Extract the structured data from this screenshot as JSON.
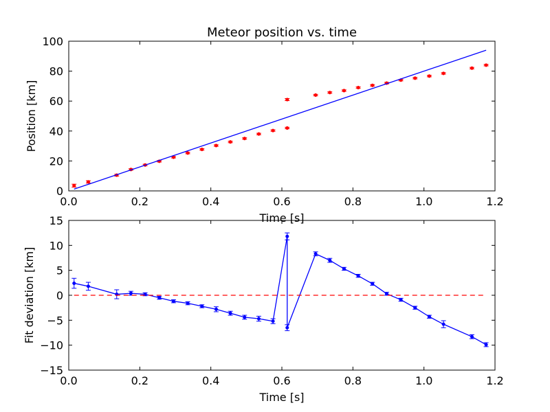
{
  "chart_data": [
    {
      "type": "scatter",
      "title": "Meteor position vs. time",
      "xlabel": "Time [s]",
      "ylabel": "Position [km]",
      "xlim": [
        0,
        1.2
      ],
      "ylim": [
        0,
        100
      ],
      "xticks": [
        "0.0",
        "0.2",
        "0.4",
        "0.6",
        "0.8",
        "1.0",
        "1.2"
      ],
      "yticks": [
        "0",
        "20",
        "40",
        "60",
        "80",
        "100"
      ],
      "grid": false,
      "series": [
        {
          "kind": "errorbar-points",
          "color": "#ff0000",
          "x": [
            0.015,
            0.055,
            0.135,
            0.175,
            0.215,
            0.255,
            0.295,
            0.335,
            0.375,
            0.415,
            0.455,
            0.495,
            0.535,
            0.575,
            0.615,
            0.615,
            0.695,
            0.735,
            0.775,
            0.815,
            0.855,
            0.895,
            0.935,
            0.975,
            1.015,
            1.055,
            1.135,
            1.175
          ],
          "y": [
            3.5,
            6.0,
            10.5,
            14.3,
            17.3,
            19.8,
            22.5,
            25.3,
            27.7,
            30.3,
            32.7,
            35.0,
            38.0,
            40.3,
            42.0,
            61.0,
            64.0,
            65.7,
            67.0,
            69.0,
            70.5,
            72.0,
            74.0,
            75.3,
            76.7,
            78.5,
            82.0,
            84.0
          ],
          "yerr": [
            1.0,
            0.8,
            0.6,
            0.5,
            0.5,
            0.5,
            0.5,
            0.5,
            0.5,
            0.5,
            0.5,
            0.5,
            0.5,
            0.5,
            0.5,
            0.7,
            0.5,
            0.5,
            0.5,
            0.5,
            0.5,
            0.5,
            0.5,
            0.5,
            0.5,
            0.5,
            0.5,
            0.5
          ]
        },
        {
          "kind": "fit-line",
          "color": "#0000ff",
          "x": [
            0.015,
            1.175
          ],
          "y": [
            1.2,
            94.0
          ]
        }
      ]
    },
    {
      "type": "line",
      "xlabel": "Time [s]",
      "ylabel": "Fit deviation [km]",
      "xlim": [
        0,
        1.2
      ],
      "ylim": [
        -15,
        15
      ],
      "xticks": [
        "0.0",
        "0.2",
        "0.4",
        "0.6",
        "0.8",
        "1.0",
        "1.2"
      ],
      "yticks": [
        "−15",
        "−10",
        "−5",
        "0",
        "5",
        "10",
        "15"
      ],
      "grid": false,
      "series": [
        {
          "kind": "errorbar-line",
          "color": "#0000ff",
          "x": [
            0.015,
            0.055,
            0.135,
            0.175,
            0.215,
            0.255,
            0.295,
            0.335,
            0.375,
            0.415,
            0.455,
            0.495,
            0.535,
            0.575,
            0.615,
            0.615,
            0.695,
            0.735,
            0.775,
            0.815,
            0.855,
            0.895,
            0.935,
            0.975,
            1.015,
            1.055,
            1.135,
            1.175
          ],
          "y": [
            2.4,
            1.8,
            0.2,
            0.4,
            0.2,
            -0.5,
            -1.2,
            -1.6,
            -2.2,
            -2.8,
            -3.6,
            -4.4,
            -4.7,
            -5.2,
            11.8,
            -6.5,
            8.3,
            7.0,
            5.3,
            3.9,
            2.3,
            0.3,
            -0.9,
            -2.5,
            -4.3,
            -5.8,
            -8.3,
            -9.9
          ],
          "yerr": [
            1.0,
            0.8,
            0.9,
            0.4,
            0.3,
            0.3,
            0.3,
            0.3,
            0.3,
            0.5,
            0.4,
            0.4,
            0.5,
            0.5,
            0.7,
            0.6,
            0.4,
            0.4,
            0.3,
            0.3,
            0.3,
            0.3,
            0.3,
            0.3,
            0.3,
            0.7,
            0.4,
            0.4
          ]
        },
        {
          "kind": "reference-line",
          "color": "#ff0000",
          "style": "dashed",
          "y": 0,
          "x": [
            0.015,
            1.175
          ]
        }
      ]
    }
  ]
}
